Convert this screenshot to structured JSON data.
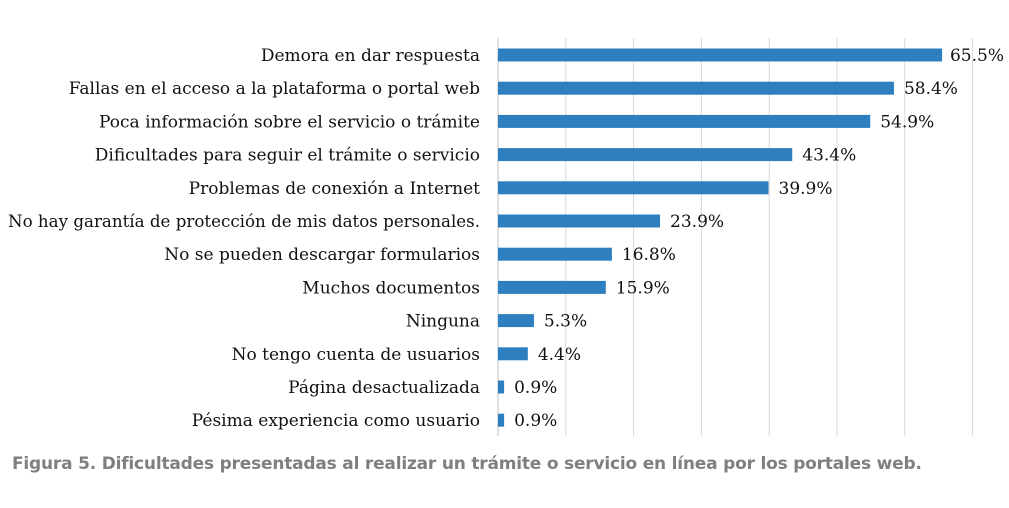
{
  "chart_data": {
    "type": "bar",
    "orientation": "horizontal",
    "categories": [
      "Demora en dar respuesta",
      "Fallas en el acceso a la plataforma o portal web",
      "Poca información sobre el servicio o trámite",
      "Dificultades para seguir el trámite o servicio",
      "Problemas de conexión a Internet",
      "No hay garantía de protección de mis datos personales.",
      "No se pueden descargar formularios",
      "Muchos documentos",
      "Ninguna",
      "No tengo cuenta de usuarios",
      "Página desactualizada",
      "Pésima experiencia como usuario"
    ],
    "values": [
      65.5,
      58.4,
      54.9,
      43.4,
      39.9,
      23.9,
      16.8,
      15.9,
      5.3,
      4.4,
      0.9,
      0.9
    ],
    "value_labels": [
      "65.5%",
      "58.4%",
      "54.9%",
      "43.4%",
      "39.9%",
      "23.9%",
      "16.8%",
      "15.9%",
      "5.3%",
      "4.4%",
      "0.9%",
      "0.9%"
    ],
    "xlim": [
      0,
      70
    ],
    "grid": true,
    "bar_color": "#2e7fc0",
    "grid_color": "#d9d9d9"
  },
  "caption": "Figura 5. Dificultades presentadas al realizar un trámite o servicio en línea por los portales web."
}
